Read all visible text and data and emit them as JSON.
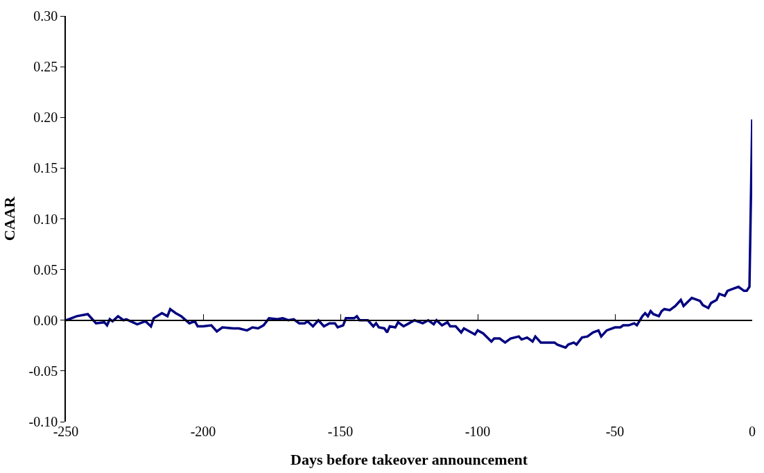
{
  "chart_data": {
    "type": "line",
    "xlabel": "Days before takeover announcement",
    "ylabel": "CAAR",
    "x": [
      -250,
      -246,
      -242,
      -239,
      -236,
      -235,
      -234,
      -233,
      -231,
      -229,
      -228,
      -224,
      -221,
      -219,
      -218,
      -215,
      -213,
      -212,
      -210,
      -208,
      -205,
      -203,
      -202,
      -200,
      -197,
      -195,
      -193,
      -189,
      -187,
      -184,
      -182,
      -180,
      -178,
      -176,
      -173,
      -171,
      -169,
      -167,
      -165,
      -163,
      -162,
      -160,
      -158,
      -156,
      -154,
      -152,
      -151,
      -149,
      -148,
      -145,
      -144,
      -143,
      -140,
      -138,
      -137,
      -136,
      -134,
      -133,
      -132,
      -130,
      -129,
      -127,
      -125,
      -123,
      -120,
      -118,
      -116,
      -115,
      -113,
      -111,
      -110,
      -108,
      -106,
      -105,
      -101,
      -100,
      -98,
      -95,
      -94,
      -92,
      -90,
      -88,
      -85,
      -84,
      -82,
      -80,
      -79,
      -77,
      -74,
      -72,
      -71,
      -68,
      -67,
      -65,
      -64,
      -62,
      -60,
      -58,
      -56,
      -55,
      -53,
      -50,
      -48,
      -47,
      -45,
      -43,
      -42,
      -40,
      -39,
      -38,
      -37,
      -36,
      -34,
      -33,
      -32,
      -30,
      -28,
      -26,
      -25,
      -22,
      -19,
      -18,
      -16,
      -15,
      -13,
      -12,
      -10,
      -9,
      -7,
      -5,
      -3,
      -2,
      -1,
      0
    ],
    "series": [
      {
        "color": "#000080",
        "values": [
          0.0,
          0.004,
          0.006,
          -0.003,
          -0.002,
          -0.005,
          0.001,
          -0.001,
          0.004,
          0.0,
          0.001,
          -0.004,
          -0.001,
          -0.006,
          0.002,
          0.007,
          0.004,
          0.011,
          0.007,
          0.004,
          -0.003,
          -0.001,
          -0.006,
          -0.006,
          -0.005,
          -0.011,
          -0.007,
          -0.008,
          -0.008,
          -0.01,
          -0.007,
          -0.008,
          -0.005,
          0.002,
          0.001,
          0.002,
          0.0,
          0.001,
          -0.003,
          -0.003,
          -0.001,
          -0.006,
          0.0,
          -0.006,
          -0.003,
          -0.003,
          -0.007,
          -0.005,
          0.002,
          0.002,
          0.004,
          0.0,
          0.0,
          -0.006,
          -0.003,
          -0.007,
          -0.008,
          -0.012,
          -0.006,
          -0.007,
          -0.002,
          -0.006,
          -0.003,
          0.0,
          -0.003,
          0.0,
          -0.004,
          0.0,
          -0.005,
          -0.002,
          -0.006,
          -0.006,
          -0.012,
          -0.008,
          -0.014,
          -0.01,
          -0.013,
          -0.021,
          -0.018,
          -0.018,
          -0.022,
          -0.018,
          -0.016,
          -0.019,
          -0.017,
          -0.021,
          -0.016,
          -0.022,
          -0.022,
          -0.022,
          -0.024,
          -0.027,
          -0.024,
          -0.022,
          -0.024,
          -0.017,
          -0.016,
          -0.012,
          -0.01,
          -0.016,
          -0.01,
          -0.007,
          -0.007,
          -0.005,
          -0.005,
          -0.003,
          -0.005,
          0.004,
          0.007,
          0.004,
          0.009,
          0.006,
          0.004,
          0.009,
          0.011,
          0.01,
          0.014,
          0.02,
          0.014,
          0.022,
          0.019,
          0.015,
          0.012,
          0.017,
          0.02,
          0.026,
          0.024,
          0.029,
          0.031,
          0.033,
          0.029,
          0.029,
          0.033,
          0.198
        ]
      }
    ],
    "xlim": [
      -250,
      0
    ],
    "xticks": [
      -250,
      -200,
      -150,
      -100,
      -50,
      0
    ],
    "ylim": [
      -0.1,
      0.3
    ],
    "yticks": [
      {
        "value": -0.1,
        "label": "-0.10"
      },
      {
        "value": -0.05,
        "label": "-0.05"
      },
      {
        "value": 0,
        "label": "0.00"
      },
      {
        "value": 0.05,
        "label": "0.05"
      },
      {
        "value": 0.1,
        "label": "0.10"
      },
      {
        "value": 0.15,
        "label": "0.15"
      },
      {
        "value": 0.2,
        "label": "0.20"
      },
      {
        "value": 0.25,
        "label": "0.25"
      },
      {
        "value": 0.3,
        "label": "0.30"
      }
    ],
    "marker": "none",
    "line_style": "solid"
  }
}
